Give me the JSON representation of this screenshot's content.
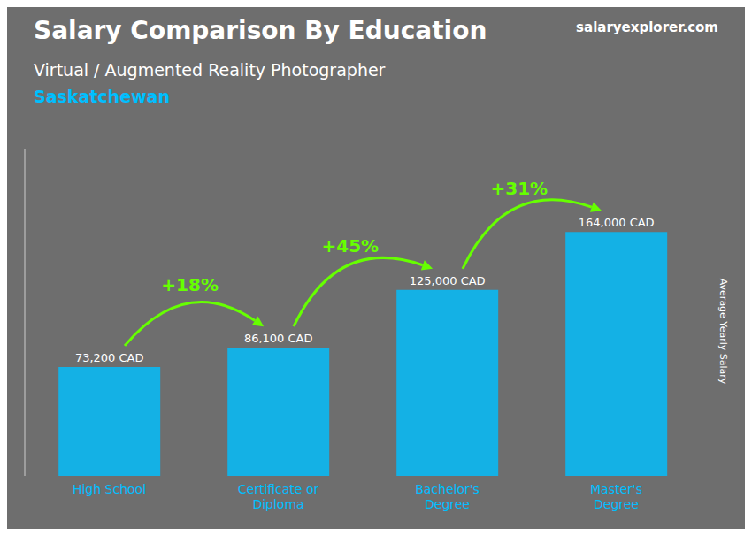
{
  "chart_data": {
    "type": "bar",
    "title": "Salary Comparison By Education",
    "subtitle": [
      "Virtual / Augmented Reality Photographer",
      "Saskatchewan"
    ],
    "ylabel": "Average Yearly Salary",
    "categories": [
      "High School",
      "Certificate or\nDiploma",
      "Bachelor's\nDegree",
      "Master's\nDegree"
    ],
    "values": [
      73200,
      86100,
      125000,
      164000
    ],
    "value_labels": [
      "73,200 CAD",
      "86,100 CAD",
      "125,000 CAD",
      "164,000 CAD"
    ],
    "data_labels": true,
    "color": "#00BFFF",
    "ylim": [
      0,
      220000
    ],
    "grid": false,
    "tick_labels": "x",
    "annotations": [
      {
        "text": "salaryexplorer.com"
      },
      {
        "text": "+18%",
        "from": "High School",
        "to": "Certificate or\nDiploma"
      },
      {
        "text": "+45%",
        "from": "Certificate or\nDiploma",
        "to": "Bachelor's\nDegree"
      },
      {
        "text": "+31%",
        "from": "Bachelor's\nDegree",
        "to": "Master's\nDegree"
      }
    ]
  }
}
